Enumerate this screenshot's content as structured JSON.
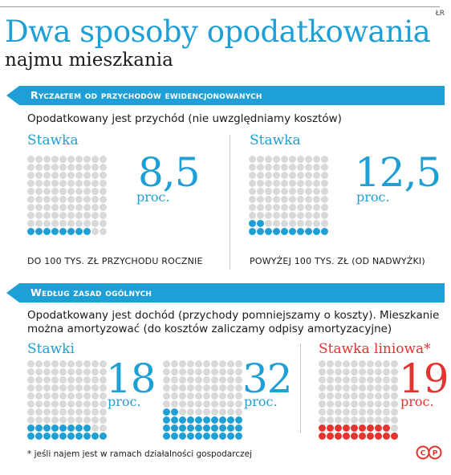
{
  "header": {
    "credit": "ŁR",
    "title": "Dwa sposoby opodatkowania",
    "subtitle": "najmu mieszkania"
  },
  "section1": {
    "banner": "Ryczałtem od przychodów ewidencjonowanych",
    "description": "Opodatkowany jest przychód (nie uwzględniamy kosztów)",
    "left": {
      "label": "Stawka",
      "value": "8,5",
      "unit": "proc.",
      "caption": "DO 100 TYS. ZŁ PRZYCHODU ROCZNIE",
      "filled": 8.5
    },
    "right": {
      "label": "Stawka",
      "value": "12,5",
      "unit": "proc.",
      "caption": "POWYŻEJ 100 TYS. ZŁ (OD NADWYŻKI)",
      "filled": 12.5
    }
  },
  "section2": {
    "banner": "Według zasad ogólnych",
    "description_line1": "Opodatkowany jest dochód (przychody pomniejszamy o koszty). Mieszkanie",
    "description_line2": "można amortyzować (do kosztów zaliczamy odpisy amortyzacyjne)",
    "group1_label": "Stawki",
    "rate1": {
      "value": "18",
      "unit": "proc.",
      "filled": 18
    },
    "rate2": {
      "value": "32",
      "unit": "proc.",
      "filled": 32
    },
    "linear": {
      "label": "Stawka liniowa*",
      "value": "19",
      "unit": "proc.",
      "filled": 19
    }
  },
  "footnote": "* jeśli najem jest w ramach działalności gospodarczej",
  "logo": "CP",
  "colors": {
    "accent": "#1e9fd6",
    "red": "#e5342f",
    "dot_empty": "#d9d9d9"
  }
}
